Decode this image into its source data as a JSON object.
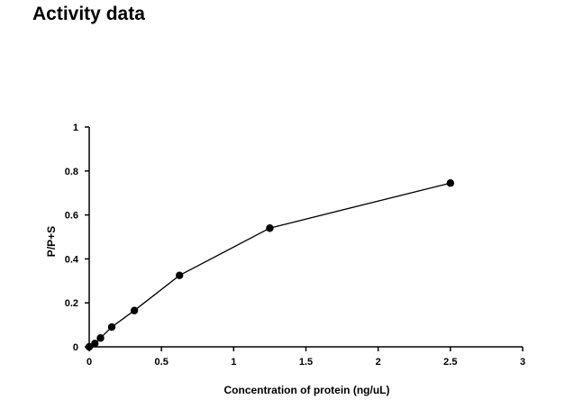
{
  "page": {
    "title": "Activity data"
  },
  "chart_data": {
    "type": "line",
    "xlabel": "Concentration of protein (ng/uL)",
    "ylabel": "P/P+S",
    "xlim": [
      0,
      3
    ],
    "ylim": [
      0,
      1
    ],
    "xticks": [
      "0",
      "0.5",
      "1",
      "1.5",
      "2",
      "2.5",
      "3"
    ],
    "yticks": [
      "0",
      "0.2",
      "0.4",
      "0.6",
      "0.8",
      "1"
    ],
    "grid": false,
    "legend": "none",
    "series": [
      {
        "color": "#000000",
        "marker": "circle",
        "x": [
          0,
          0.039,
          0.078,
          0.156,
          0.3125,
          0.625,
          1.25,
          2.5
        ],
        "y": [
          0.0,
          0.015,
          0.04,
          0.09,
          0.165,
          0.325,
          0.54,
          0.745
        ]
      }
    ]
  }
}
